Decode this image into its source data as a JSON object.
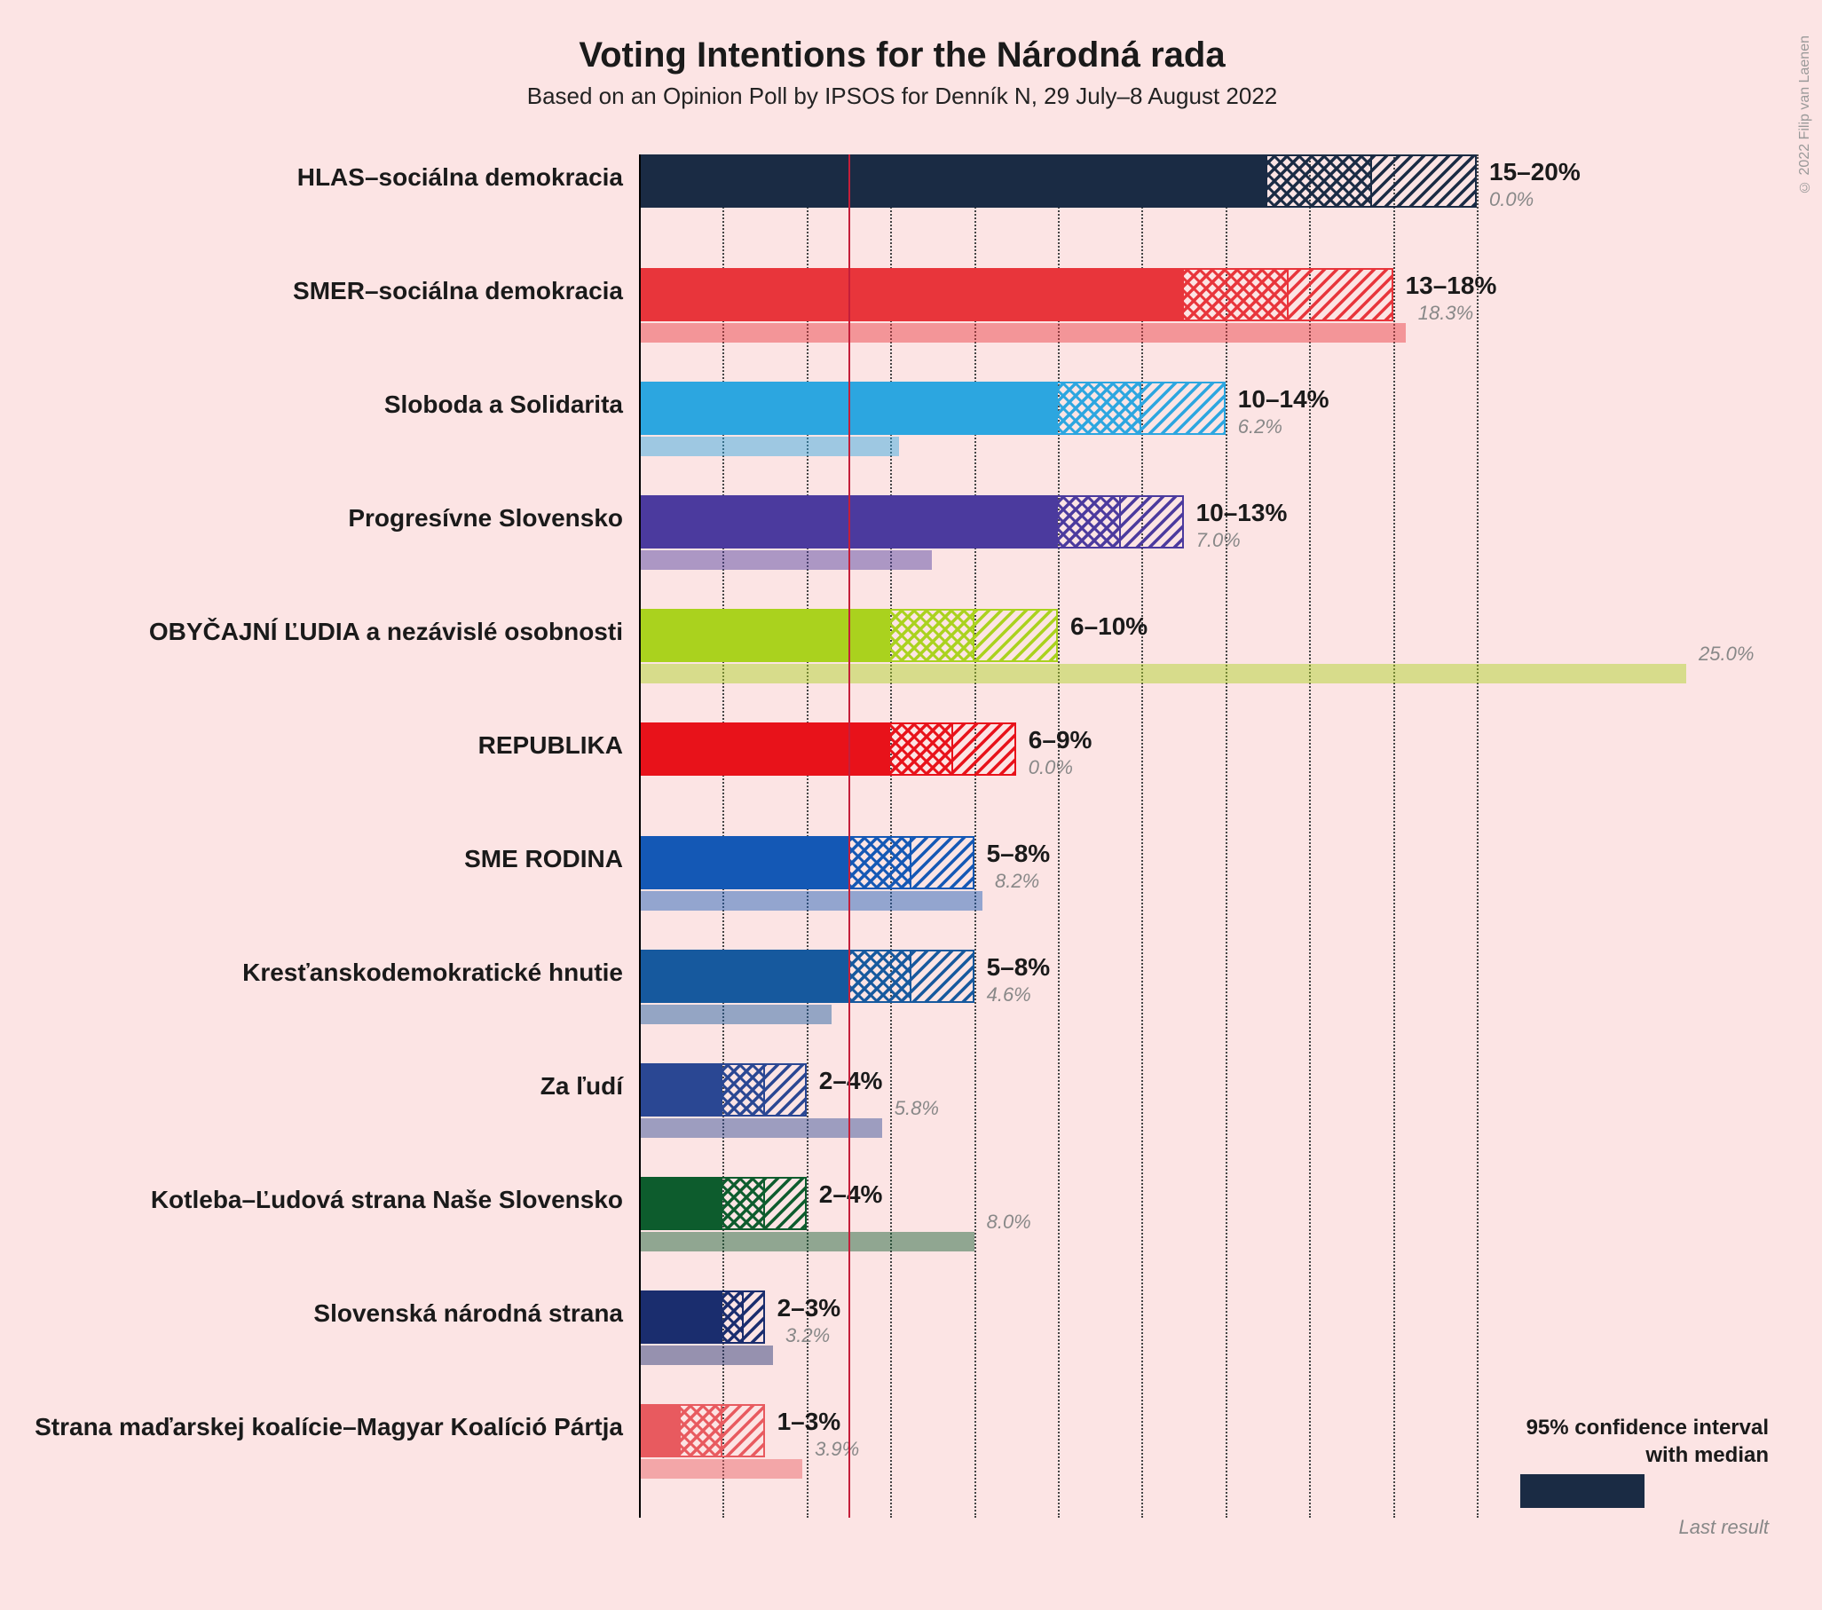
{
  "title": "Voting Intentions for the Národná rada",
  "subtitle": "Based on an Opinion Poll by IPSOS for Denník N, 29 July–8 August 2022",
  "credit": "© 2022 Filip van Laenen",
  "background_color": "#fce4e4",
  "scale_max": 25,
  "threshold_pct": 5,
  "gridlines": [
    2,
    4,
    6,
    8,
    10,
    12,
    14,
    16,
    18,
    20
  ],
  "legend": {
    "line1": "95% confidence interval",
    "line2": "with median",
    "last": "Last result",
    "color": "#1a2b44"
  },
  "parties": [
    {
      "name": "HLAS–sociálna demokracia",
      "color": "#1a2b44",
      "low": 15,
      "median": 17.5,
      "high": 20,
      "last": 0.0,
      "range": "15–20%",
      "last_txt": "0.0%"
    },
    {
      "name": "SMER–sociálna demokracia",
      "color": "#e8353b",
      "low": 13,
      "median": 15.5,
      "high": 18,
      "last": 18.3,
      "range": "13–18%",
      "last_txt": "18.3%"
    },
    {
      "name": "Sloboda a Solidarita",
      "color": "#2ca6e0",
      "low": 10,
      "median": 12,
      "high": 14,
      "last": 6.2,
      "range": "10–14%",
      "last_txt": "6.2%"
    },
    {
      "name": "Progresívne Slovensko",
      "color": "#4b3a9e",
      "low": 10,
      "median": 11.5,
      "high": 13,
      "last": 7.0,
      "range": "10–13%",
      "last_txt": "7.0%"
    },
    {
      "name": "OBYČAJNÍ ĽUDIA a nezávislé osobnosti",
      "color": "#aad21e",
      "low": 6,
      "median": 8,
      "high": 10,
      "last": 25.0,
      "range": "6–10%",
      "last_txt": "25.0%"
    },
    {
      "name": "REPUBLIKA",
      "color": "#e8121a",
      "low": 6,
      "median": 7.5,
      "high": 9,
      "last": 0.0,
      "range": "6–9%",
      "last_txt": "0.0%"
    },
    {
      "name": "SME RODINA",
      "color": "#1458b5",
      "low": 5,
      "median": 6.5,
      "high": 8,
      "last": 8.2,
      "range": "5–8%",
      "last_txt": "8.2%"
    },
    {
      "name": "Kresťanskodemokratické hnutie",
      "color": "#16599e",
      "low": 5,
      "median": 6.5,
      "high": 8,
      "last": 4.6,
      "range": "5–8%",
      "last_txt": "4.6%"
    },
    {
      "name": "Za ľudí",
      "color": "#2a4793",
      "low": 2,
      "median": 3,
      "high": 4,
      "last": 5.8,
      "range": "2–4%",
      "last_txt": "5.8%"
    },
    {
      "name": "Kotleba–Ľudová strana Naše Slovensko",
      "color": "#0d5c2d",
      "low": 2,
      "median": 3,
      "high": 4,
      "last": 8.0,
      "range": "2–4%",
      "last_txt": "8.0%"
    },
    {
      "name": "Slovenská národná strana",
      "color": "#1a2d6e",
      "low": 2,
      "median": 2.5,
      "high": 3,
      "last": 3.2,
      "range": "2–3%",
      "last_txt": "3.2%"
    },
    {
      "name": "Strana maďarskej koalície–Magyar Koalíció Pártja",
      "color": "#e85a5f",
      "low": 1,
      "median": 2,
      "high": 3,
      "last": 3.9,
      "range": "1–3%",
      "last_txt": "3.9%"
    }
  ]
}
